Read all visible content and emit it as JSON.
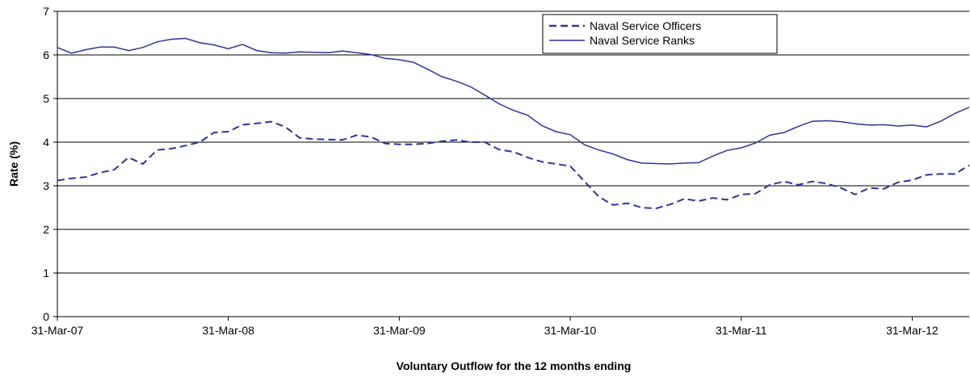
{
  "chart_data": {
    "type": "line",
    "x_label": "Voluntary Outflow for the 12 months ending",
    "y_label": "Rate (%)",
    "categories": [
      "31-Mar-07",
      null,
      null,
      null,
      null,
      null,
      null,
      null,
      null,
      null,
      null,
      null,
      "31-Mar-08",
      null,
      null,
      null,
      null,
      null,
      null,
      null,
      null,
      null,
      null,
      null,
      "31-Mar-09",
      null,
      null,
      null,
      null,
      null,
      null,
      null,
      null,
      null,
      null,
      null,
      "31-Mar-10",
      null,
      null,
      null,
      null,
      null,
      null,
      null,
      null,
      null,
      null,
      null,
      "31-Mar-11",
      null,
      null,
      null,
      null,
      null,
      null,
      null,
      null,
      null,
      null,
      null,
      "31-Mar-12",
      null,
      null,
      null,
      null
    ],
    "series": [
      {
        "name": "Naval Service Officers",
        "color": "#333399",
        "dash": true,
        "values": [
          3.12,
          3.17,
          3.2,
          3.3,
          3.37,
          3.65,
          3.5,
          3.82,
          3.85,
          3.92,
          4.0,
          4.22,
          4.24,
          4.4,
          4.43,
          4.47,
          4.35,
          4.1,
          4.07,
          4.06,
          4.05,
          4.16,
          4.12,
          3.97,
          3.95,
          3.95,
          3.97,
          4.02,
          4.05,
          4.0,
          4.0,
          3.83,
          3.78,
          3.65,
          3.55,
          3.5,
          3.45,
          3.1,
          2.75,
          2.56,
          2.6,
          2.5,
          2.48,
          2.57,
          2.7,
          2.65,
          2.72,
          2.68,
          2.8,
          2.82,
          3.02,
          3.1,
          3.02,
          3.1,
          3.05,
          2.95,
          2.8,
          2.95,
          2.93,
          3.08,
          3.13,
          3.25,
          3.27,
          3.27,
          3.47
        ]
      },
      {
        "name": "Naval Service Ranks",
        "color": "#333399",
        "dash": false,
        "values": [
          6.17,
          6.04,
          6.12,
          6.18,
          6.18,
          6.1,
          6.17,
          6.3,
          6.36,
          6.38,
          6.28,
          6.23,
          6.14,
          6.24,
          6.1,
          6.05,
          6.04,
          6.07,
          6.06,
          6.05,
          6.09,
          6.05,
          6.01,
          5.92,
          5.89,
          5.83,
          5.67,
          5.5,
          5.4,
          5.27,
          5.08,
          4.88,
          4.73,
          4.62,
          4.38,
          4.24,
          4.17,
          3.94,
          3.82,
          3.73,
          3.6,
          3.52,
          3.51,
          3.5,
          3.52,
          3.53,
          3.68,
          3.81,
          3.87,
          3.98,
          4.16,
          4.22,
          4.36,
          4.48,
          4.49,
          4.47,
          4.42,
          4.39,
          4.4,
          4.37,
          4.39,
          4.35,
          4.48,
          4.66,
          4.8
        ]
      }
    ],
    "ylim": [
      0,
      7
    ],
    "yticks": [
      0,
      1,
      2,
      3,
      4,
      5,
      6,
      7
    ],
    "grid": true,
    "legend": "top-right"
  }
}
